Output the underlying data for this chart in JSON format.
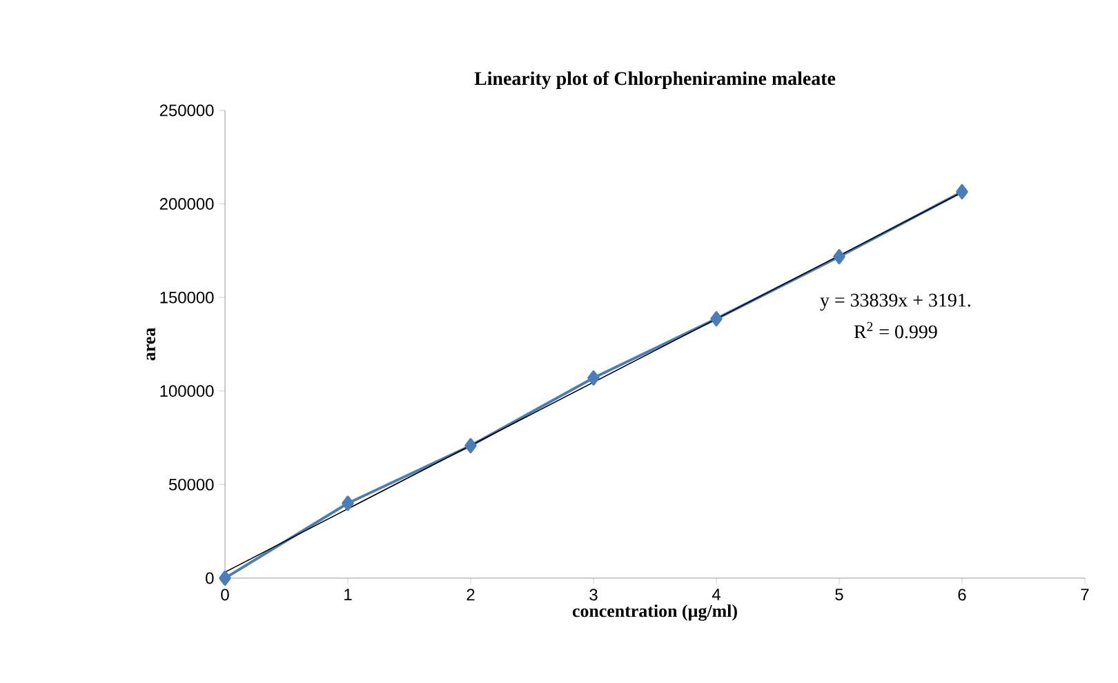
{
  "chart_data": {
    "type": "line",
    "title": "Linearity plot of Chlorpheniramine maleate",
    "xlabel": "concentration (µg/ml)",
    "ylabel": "area",
    "x": [
      0,
      1,
      2,
      3,
      4,
      5,
      6
    ],
    "series": [
      {
        "color": "#4a7ebb",
        "values": [
          0,
          40000,
          70800,
          107000,
          138600,
          171800,
          206500
        ],
        "marker": "diamond"
      },
      {
        "type": "line",
        "color": "#000000",
        "x": [
          0,
          6
        ],
        "values": [
          3200,
          206200
        ],
        "marker": "none"
      }
    ],
    "xlim": [
      0,
      7
    ],
    "xticks": [
      0,
      1,
      2,
      3,
      4,
      5,
      6,
      7
    ],
    "ylim": [
      0,
      250000
    ],
    "yticks": [
      0,
      50000,
      100000,
      150000,
      200000,
      250000
    ],
    "line_style": "solid",
    "grid": false,
    "annotations": [
      "y = 33839x + 3191.",
      "R$^{2}$ = 0.999"
    ]
  }
}
